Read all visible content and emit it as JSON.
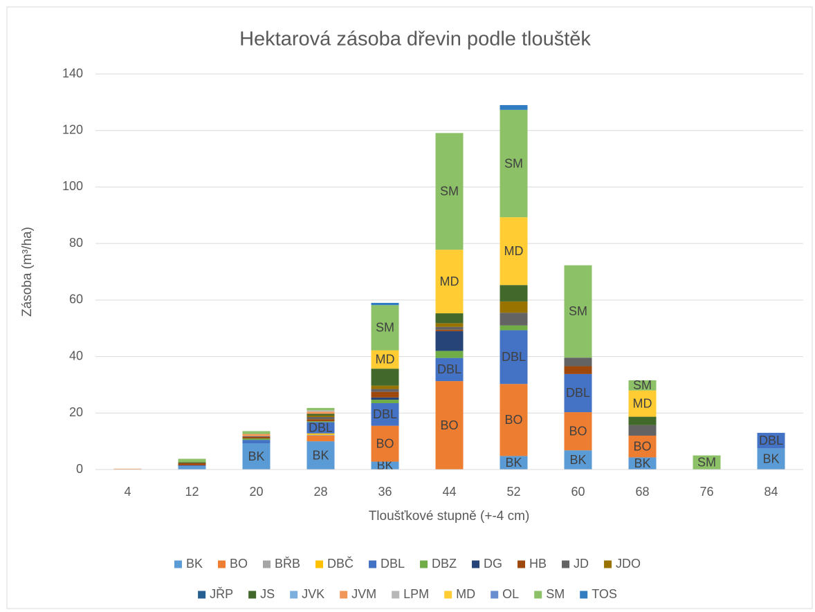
{
  "chart_data": {
    "type": "stacked_bar",
    "title": "Hektarová zásoba dřevin podle tlouštěk",
    "x_label": "Tloušťkové stupně (+-4 cm)",
    "y_label": "Zásoba (m³/ha)",
    "categories": [
      4,
      12,
      20,
      28,
      36,
      44,
      52,
      60,
      68,
      76,
      84
    ],
    "ylim": [
      0,
      140
    ],
    "yticks": [
      0,
      20,
      40,
      60,
      80,
      100,
      120,
      140
    ],
    "grid": true,
    "legend": "bottom",
    "series": [
      {
        "name": "BK",
        "color": "#5B9BD5",
        "data_labels": true,
        "values": [
          0.1,
          1.2,
          9.3,
          10,
          2.8,
          0,
          4.8,
          6.8,
          4.3,
          0,
          7.5
        ]
      },
      {
        "name": "BO",
        "color": "#ED7D31",
        "data_labels": true,
        "values": [
          0,
          0,
          0,
          2,
          12.7,
          31.3,
          25.5,
          13.5,
          7.7,
          0,
          0
        ]
      },
      {
        "name": "BŘB",
        "color": "#A5A5A5",
        "values": [
          0,
          0,
          0,
          0.3,
          0,
          0,
          0,
          0,
          0,
          0,
          0
        ]
      },
      {
        "name": "DBČ",
        "color": "#FFC000",
        "values": [
          0,
          0,
          0,
          0.5,
          0,
          0,
          0,
          0,
          0,
          0,
          0
        ]
      },
      {
        "name": "DBL",
        "color": "#4472C4",
        "data_labels": true,
        "values": [
          0,
          0.3,
          1.2,
          4,
          8,
          8.2,
          19,
          13.5,
          0,
          0,
          5.5
        ]
      },
      {
        "name": "DBZ",
        "color": "#70AD47",
        "values": [
          0,
          0,
          0.5,
          0.3,
          1.2,
          2.5,
          1.7,
          0,
          0,
          0,
          0
        ]
      },
      {
        "name": "DG",
        "color": "#264478",
        "values": [
          0,
          0,
          0,
          0,
          0.8,
          7,
          0,
          0,
          0,
          0,
          0
        ]
      },
      {
        "name": "HB",
        "color": "#9E480E",
        "values": [
          0,
          0.8,
          0.5,
          0.7,
          2,
          0.5,
          0,
          2.8,
          0,
          0,
          0
        ]
      },
      {
        "name": "JD",
        "color": "#636363",
        "values": [
          0,
          0,
          0.3,
          0.8,
          1,
          1,
          4.5,
          3,
          3.7,
          0,
          0
        ]
      },
      {
        "name": "JDO",
        "color": "#997300",
        "values": [
          0,
          0,
          0,
          0.5,
          1.2,
          1.3,
          4,
          0,
          0,
          0,
          0
        ]
      },
      {
        "name": "JŘP",
        "color": "#255E91",
        "values": [
          0,
          0,
          0,
          0,
          0,
          0,
          0,
          0,
          0,
          0,
          0
        ]
      },
      {
        "name": "JS",
        "color": "#43682B",
        "values": [
          0,
          0.3,
          0,
          0.6,
          6,
          3.5,
          5.8,
          0,
          3,
          0,
          0
        ]
      },
      {
        "name": "JVK",
        "color": "#7CAFDD",
        "values": [
          0,
          0,
          0,
          0,
          0,
          0,
          0,
          0,
          0,
          0,
          0
        ]
      },
      {
        "name": "JVM",
        "color": "#F1975A",
        "values": [
          0.2,
          0,
          0.8,
          0.8,
          0,
          0,
          0,
          0,
          0,
          0,
          0
        ]
      },
      {
        "name": "LPM",
        "color": "#B7B7B7",
        "values": [
          0,
          0,
          0,
          0.5,
          0,
          0,
          0,
          0,
          0,
          0,
          0
        ]
      },
      {
        "name": "MD",
        "color": "#FFCD33",
        "data_labels": true,
        "values": [
          0,
          0,
          0,
          0,
          6.5,
          22.5,
          24,
          0,
          9.3,
          0,
          0
        ]
      },
      {
        "name": "OL",
        "color": "#698ED0",
        "values": [
          0,
          0,
          0,
          0,
          0,
          0,
          0,
          0,
          0,
          0,
          0
        ]
      },
      {
        "name": "SM",
        "color": "#8CC168",
        "data_labels": true,
        "values": [
          0,
          1.2,
          1,
          0.8,
          16,
          41.3,
          38,
          32.7,
          3.6,
          5,
          0
        ]
      },
      {
        "name": "TOS",
        "color": "#327DC2",
        "values": [
          0,
          0,
          0,
          0,
          0.8,
          0,
          1.7,
          0,
          0,
          0,
          0
        ]
      }
    ]
  }
}
